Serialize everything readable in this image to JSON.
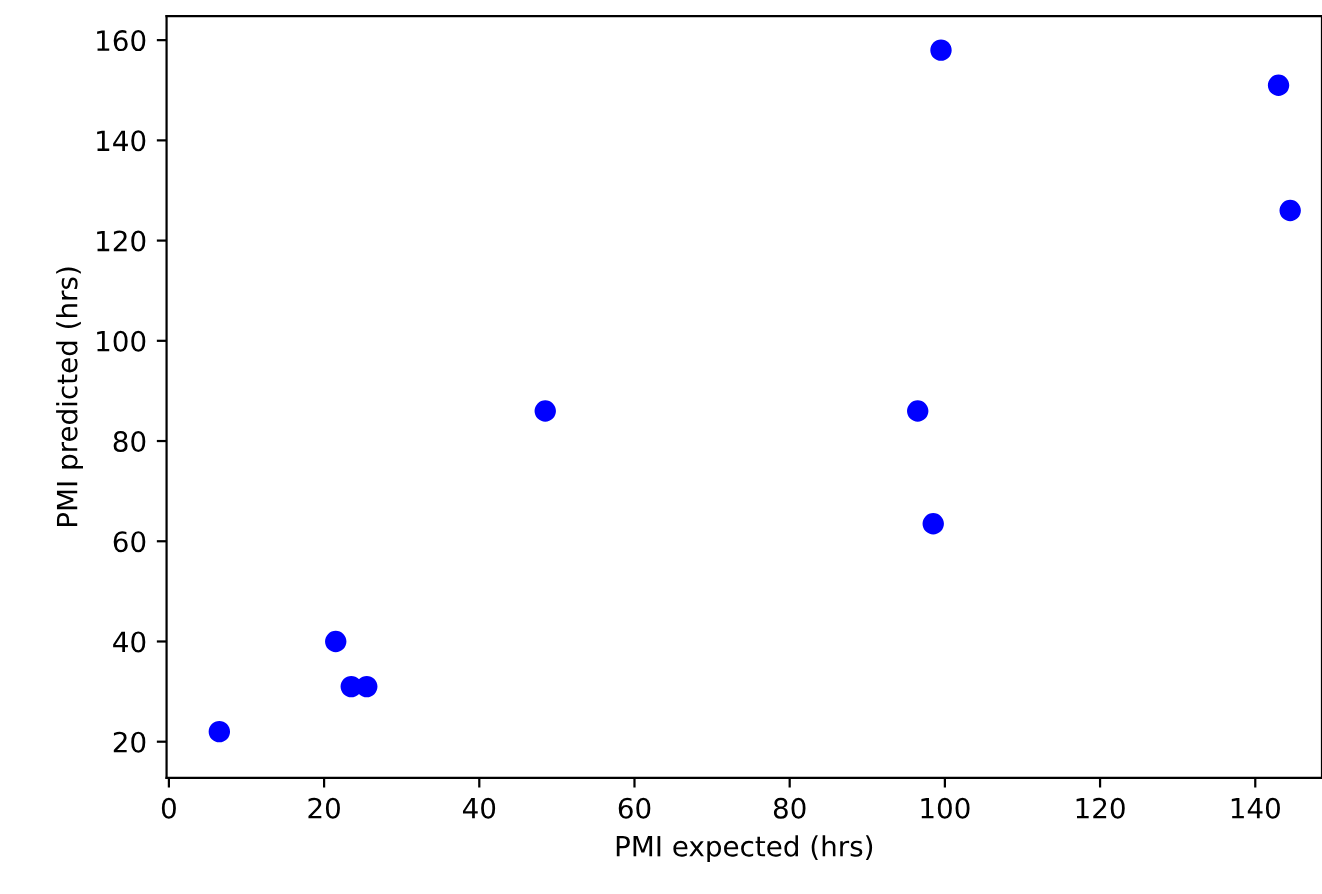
{
  "chart_data": {
    "type": "scatter",
    "xlabel": "PMI expected (hrs)",
    "ylabel": "PMI predicted (hrs)",
    "x": [
      6.5,
      21.5,
      23.5,
      25.5,
      48.5,
      96.5,
      98.5,
      99.5,
      143,
      144.5
    ],
    "series": [
      {
        "color": "#0000ff",
        "values": [
          22,
          40,
          31,
          31,
          86,
          86,
          63.5,
          158,
          151,
          126
        ]
      }
    ],
    "marker": "circle",
    "xlim": [
      -0.3,
      148.6
    ],
    "ylim": [
      12.8,
      164.8
    ],
    "xticks": [
      0,
      20,
      40,
      60,
      80,
      100,
      120,
      140
    ],
    "yticks": [
      20,
      40,
      60,
      80,
      100,
      120,
      140,
      160
    ],
    "grid": false,
    "legend": false
  }
}
